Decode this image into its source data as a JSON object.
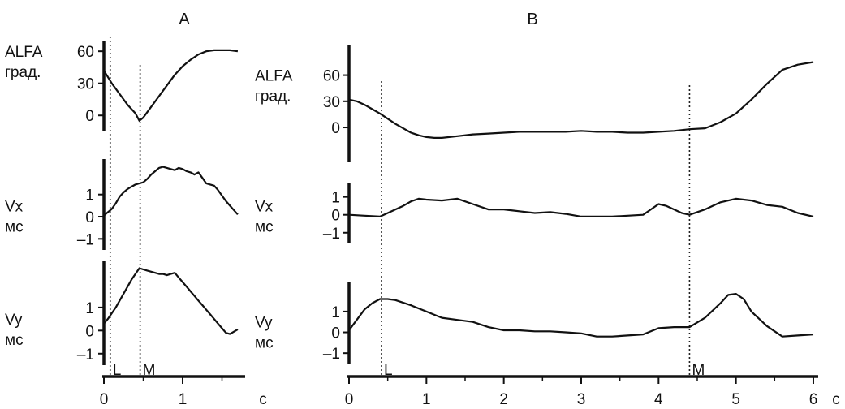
{
  "colors": {
    "trace": "#111111",
    "marker": "#222222",
    "axis": "#111111",
    "background": "#ffffff"
  },
  "chart_data": [
    {
      "panel": "A",
      "title": "A",
      "type": "line",
      "xlabel": "c",
      "xlim": [
        0,
        1.75
      ],
      "xticks": [
        "0",
        "1"
      ],
      "xtick_values": [
        0,
        1
      ],
      "markers": [
        {
          "label": "L",
          "x": 0.08
        },
        {
          "label": "M",
          "x": 0.46
        }
      ],
      "series": [
        {
          "labels": [
            "ALFA",
            "град."
          ],
          "ylim": [
            -15,
            70
          ],
          "yticks": [
            "60",
            "30",
            "0"
          ],
          "ytick_values": [
            60,
            30,
            0
          ],
          "x": [
            0,
            0.1,
            0.2,
            0.3,
            0.4,
            0.45,
            0.5,
            0.6,
            0.7,
            0.8,
            0.9,
            1.0,
            1.1,
            1.2,
            1.3,
            1.4,
            1.5,
            1.6,
            1.7
          ],
          "y": [
            42,
            30,
            20,
            10,
            2,
            -5,
            -2,
            8,
            18,
            28,
            38,
            46,
            52,
            57,
            60,
            61,
            61,
            61,
            60
          ]
        },
        {
          "labels": [
            "Vx",
            "мс"
          ],
          "ylim": [
            -1.5,
            2.6
          ],
          "yticks": [
            "1",
            "0",
            "–1"
          ],
          "ytick_values": [
            1,
            0,
            -1
          ],
          "x": [
            0,
            0.05,
            0.1,
            0.15,
            0.2,
            0.25,
            0.3,
            0.35,
            0.4,
            0.45,
            0.5,
            0.55,
            0.6,
            0.65,
            0.7,
            0.75,
            0.8,
            0.85,
            0.9,
            0.95,
            1.0,
            1.05,
            1.1,
            1.15,
            1.2,
            1.25,
            1.3,
            1.35,
            1.4,
            1.45,
            1.5,
            1.55,
            1.6,
            1.65,
            1.7
          ],
          "y": [
            0.05,
            0.2,
            0.35,
            0.6,
            0.9,
            1.1,
            1.25,
            1.35,
            1.45,
            1.5,
            1.55,
            1.7,
            1.9,
            2.05,
            2.2,
            2.25,
            2.2,
            2.15,
            2.1,
            2.2,
            2.15,
            2.05,
            2.0,
            1.9,
            2.0,
            1.75,
            1.5,
            1.45,
            1.4,
            1.2,
            0.95,
            0.7,
            0.5,
            0.3,
            0.1
          ]
        },
        {
          "labels": [
            "Vy",
            "мс"
          ],
          "ylim": [
            -1.5,
            3.0
          ],
          "yticks": [
            "1",
            "0",
            "–1"
          ],
          "ytick_values": [
            1,
            0,
            -1
          ],
          "x": [
            0,
            0.05,
            0.1,
            0.15,
            0.2,
            0.25,
            0.3,
            0.35,
            0.4,
            0.45,
            0.5,
            0.55,
            0.6,
            0.65,
            0.7,
            0.75,
            0.8,
            0.85,
            0.9,
            0.95,
            1.0,
            1.05,
            1.1,
            1.15,
            1.2,
            1.25,
            1.3,
            1.35,
            1.4,
            1.45,
            1.5,
            1.55,
            1.6,
            1.65,
            1.7
          ],
          "y": [
            0.3,
            0.5,
            0.75,
            1.0,
            1.3,
            1.6,
            1.9,
            2.2,
            2.45,
            2.7,
            2.65,
            2.6,
            2.55,
            2.5,
            2.45,
            2.45,
            2.4,
            2.45,
            2.5,
            2.3,
            2.1,
            1.9,
            1.7,
            1.5,
            1.3,
            1.1,
            0.9,
            0.7,
            0.5,
            0.3,
            0.1,
            -0.1,
            -0.15,
            -0.05,
            0.05
          ]
        }
      ]
    },
    {
      "panel": "B",
      "title": "B",
      "type": "line",
      "xlabel": "c",
      "xlim": [
        0,
        6
      ],
      "xticks": [
        "0",
        "1",
        "2",
        "3",
        "4",
        "5",
        "6"
      ],
      "xtick_values": [
        0,
        1,
        2,
        3,
        4,
        5,
        6
      ],
      "markers": [
        {
          "label": "L",
          "x": 0.42
        },
        {
          "label": "M",
          "x": 4.4
        }
      ],
      "series": [
        {
          "labels": [
            "ALFA",
            "град."
          ],
          "ylim": [
            -40,
            95
          ],
          "yticks": [
            "60",
            "30",
            "0"
          ],
          "ytick_values": [
            60,
            30,
            0
          ],
          "x": [
            0,
            0.1,
            0.2,
            0.3,
            0.4,
            0.5,
            0.6,
            0.7,
            0.8,
            0.9,
            1.0,
            1.1,
            1.2,
            1.4,
            1.6,
            1.8,
            2.0,
            2.2,
            2.4,
            2.6,
            2.8,
            3.0,
            3.2,
            3.4,
            3.6,
            3.8,
            4.0,
            4.2,
            4.4,
            4.6,
            4.8,
            5.0,
            5.2,
            5.4,
            5.6,
            5.8,
            6.0
          ],
          "y": [
            32,
            30,
            26,
            21,
            16,
            10,
            4,
            -1,
            -6,
            -9,
            -11,
            -12,
            -12,
            -10,
            -8,
            -7,
            -6,
            -5,
            -5,
            -5,
            -5,
            -4,
            -5,
            -5,
            -6,
            -6,
            -5,
            -4,
            -2,
            -1,
            6,
            16,
            32,
            50,
            66,
            72,
            75
          ]
        },
        {
          "labels": [
            "Vx",
            "мс"
          ],
          "ylim": [
            -1.6,
            1.8
          ],
          "yticks": [
            "1",
            "0",
            "–1"
          ],
          "ytick_values": [
            1,
            0,
            -1
          ],
          "x": [
            0,
            0.2,
            0.4,
            0.5,
            0.6,
            0.7,
            0.8,
            0.9,
            1.0,
            1.2,
            1.4,
            1.6,
            1.8,
            2.0,
            2.2,
            2.4,
            2.6,
            2.8,
            3.0,
            3.2,
            3.4,
            3.6,
            3.8,
            3.9,
            4.0,
            4.1,
            4.2,
            4.3,
            4.4,
            4.6,
            4.8,
            5.0,
            5.2,
            5.4,
            5.6,
            5.8,
            6.0
          ],
          "y": [
            0.0,
            -0.05,
            -0.1,
            0.1,
            0.3,
            0.5,
            0.75,
            0.9,
            0.85,
            0.8,
            0.9,
            0.6,
            0.3,
            0.3,
            0.2,
            0.1,
            0.15,
            0.05,
            -0.1,
            -0.1,
            -0.1,
            -0.05,
            0.0,
            0.3,
            0.6,
            0.5,
            0.3,
            0.1,
            0.0,
            0.3,
            0.7,
            0.9,
            0.8,
            0.55,
            0.45,
            0.1,
            -0.1
          ]
        },
        {
          "labels": [
            "Vy",
            "мс"
          ],
          "ylim": [
            -1.5,
            2.4
          ],
          "yticks": [
            "1",
            "0",
            "–1"
          ],
          "ytick_values": [
            1,
            0,
            -1
          ],
          "x": [
            0,
            0.1,
            0.2,
            0.3,
            0.4,
            0.5,
            0.6,
            0.8,
            1.0,
            1.2,
            1.4,
            1.6,
            1.8,
            2.0,
            2.2,
            2.4,
            2.6,
            2.8,
            3.0,
            3.2,
            3.4,
            3.6,
            3.8,
            4.0,
            4.2,
            4.4,
            4.6,
            4.8,
            4.9,
            5.0,
            5.1,
            5.2,
            5.4,
            5.6,
            5.8,
            6.0
          ],
          "y": [
            0.1,
            0.6,
            1.1,
            1.4,
            1.6,
            1.6,
            1.55,
            1.3,
            1.0,
            0.7,
            0.6,
            0.5,
            0.25,
            0.1,
            0.1,
            0.05,
            0.05,
            0.0,
            -0.05,
            -0.2,
            -0.2,
            -0.15,
            -0.1,
            0.2,
            0.25,
            0.25,
            0.7,
            1.4,
            1.8,
            1.85,
            1.6,
            1.0,
            0.3,
            -0.2,
            -0.15,
            -0.1
          ]
        }
      ]
    }
  ]
}
